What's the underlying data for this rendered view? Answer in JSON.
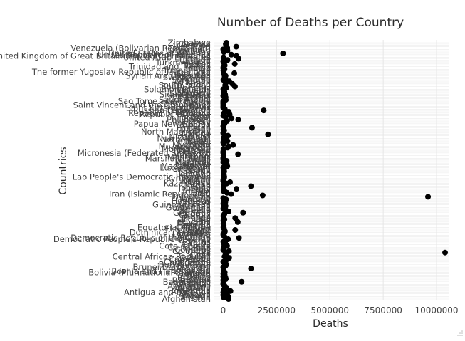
{
  "chart_data": {
    "type": "scatter",
    "title": "Number of Deaths per Country",
    "xlabel": "Deaths",
    "ylabel": "Countries",
    "xlim": [
      -450000,
      10600000
    ],
    "x_ticks": [
      0,
      2500000,
      5000000,
      7500000,
      10000000
    ],
    "x_tick_labels": [
      "0",
      "2500000",
      "5000000",
      "7500000",
      "10000000"
    ],
    "grid": true,
    "legend": "none",
    "point_color": "#000000",
    "countries": [
      "Afghanistan",
      "Albania",
      "Algeria",
      "Andorra",
      "Angola",
      "Antigua and Barbuda",
      "Argentina",
      "Armenia",
      "Australia",
      "Austria",
      "Azerbaijan",
      "Bahamas",
      "Bahrain",
      "Bangladesh",
      "Barbados",
      "Belarus",
      "Belgium",
      "Belize",
      "Benin",
      "Bhutan",
      "Bolivia (Plurinational State of)",
      "Bosnia and Herzegovina",
      "Botswana",
      "Brazil",
      "Brunei Darussalam",
      "Bulgaria",
      "Burkina Faso",
      "Burundi",
      "Cabo Verde",
      "Cambodia",
      "Cameroon",
      "Canada",
      "Central African Republic",
      "Chad",
      "Chile",
      "China",
      "Colombia",
      "Comoros",
      "Congo",
      "Costa Rica",
      "Cote d'Ivoire",
      "Croatia",
      "Cuba",
      "Cyprus",
      "Czechia",
      "Democratic People's Republic of Korea",
      "Democratic Republic of the Congo",
      "Denmark",
      "Djibouti",
      "Dominica",
      "Dominican Republic",
      "Ecuador",
      "Egypt",
      "El Salvador",
      "Equatorial Guinea",
      "Eritrea",
      "Estonia",
      "Eswatini",
      "Ethiopia",
      "Fiji",
      "Finland",
      "France",
      "Gabon",
      "Gambia",
      "Georgia",
      "Germany",
      "Ghana",
      "Greece",
      "Grenada",
      "Guatemala",
      "Guinea",
      "Guinea-Bissau",
      "Guyana",
      "Haiti",
      "Honduras",
      "Hungary",
      "Iceland",
      "India",
      "Indonesia",
      "Iran (Islamic Republic of)",
      "Iraq",
      "Ireland",
      "Israel",
      "Italy",
      "Jamaica",
      "Japan",
      "Jordan",
      "Kazakhstan",
      "Kenya",
      "Kiribati",
      "Kuwait",
      "Kyrgyzstan",
      "Lao People's Democratic Republic",
      "Latvia",
      "Lebanon",
      "Lesotho",
      "Liberia",
      "Libya",
      "Lithuania",
      "Luxembourg",
      "Madagascar",
      "Malawi",
      "Malaysia",
      "Maldives",
      "Mali",
      "Malta",
      "Marshall Islands",
      "Mauritania",
      "Mauritius",
      "Mexico",
      "Micronesia (Federated States of)",
      "Monaco",
      "Mongolia",
      "Montenegro",
      "Morocco",
      "Mozambique",
      "Myanmar",
      "Namibia",
      "Nauru",
      "Nepal",
      "Netherlands",
      "New Zealand",
      "Nicaragua",
      "Niger",
      "Nigeria",
      "Niue",
      "North Macedonia",
      "Norway",
      "Oman",
      "Pakistan",
      "Palau",
      "Panama",
      "Papua New Guinea",
      "Paraguay",
      "Peru",
      "Philippines",
      "Poland",
      "Portugal",
      "Qatar",
      "Republic of Korea",
      "Republic of Moldova",
      "Romania",
      "Russian Federation",
      "Rwanda",
      "Saint Kitts and Nevis",
      "Saint Lucia",
      "Saint Vincent and the Grenadines",
      "Samoa",
      "San Marino",
      "Sao Tome and Principe",
      "Saudi Arabia",
      "Senegal",
      "Serbia",
      "Seychelles",
      "Sierra Leone",
      "Singapore",
      "Slovakia",
      "Slovenia",
      "Solomon Islands",
      "Somalia",
      "South Africa",
      "South Sudan",
      "Spain",
      "Sri Lanka",
      "Sudan",
      "Suriname",
      "Sweden",
      "Switzerland",
      "Syrian Arab Republic",
      "Tajikistan",
      "Thailand",
      "The former Yugoslav Republic of Macedonia",
      "Timor-Leste",
      "Togo",
      "Tonga",
      "Trinidad and Tobago",
      "Tunisia",
      "Turkey",
      "Turkmenistan",
      "Tuvalu",
      "Uganda",
      "Ukraine",
      "United Arab Emirates",
      "United Kingdom of Great Britain and Northern Ireland",
      "United Republic of Tanzania",
      "United States of America",
      "Uruguay",
      "Uzbekistan",
      "Vanuatu",
      "Venezuela (Bolivarian Republic of)",
      "Viet Nam",
      "Yemen",
      "Zambia",
      "Zimbabwe"
    ],
    "deaths": [
      250000,
      30000,
      230000,
      1000,
      180000,
      1000,
      340000,
      25000,
      160000,
      80000,
      60000,
      2000,
      3000,
      860000,
      2000,
      120000,
      110000,
      2000,
      70000,
      5000,
      70000,
      35000,
      15000,
      1300000,
      1000,
      105000,
      150000,
      90000,
      3000,
      100000,
      190000,
      280000,
      60000,
      130000,
      110000,
      10400000,
      270000,
      5000,
      30000,
      25000,
      180000,
      50000,
      95000,
      6000,
      110000,
      230000,
      740000,
      55000,
      8000,
      1000,
      55000,
      80000,
      560000,
      35000,
      10000,
      25000,
      15000,
      12000,
      680000,
      6000,
      55000,
      560000,
      12000,
      12000,
      55000,
      930000,
      250000,
      120000,
      1000,
      85000,
      110000,
      15000,
      5000,
      100000,
      45000,
      130000,
      2000,
      9600000,
      1850000,
      370000,
      180000,
      30000,
      45000,
      620000,
      20000,
      1300000,
      30000,
      160000,
      320000,
      1000,
      8000,
      40000,
      50000,
      30000,
      30000,
      20000,
      45000,
      30000,
      40000,
      4000,
      190000,
      150000,
      160000,
      2000,
      160000,
      4000,
      300,
      20000,
      10000,
      690000,
      1000,
      300,
      20000,
      7000,
      210000,
      250000,
      460000,
      20000,
      100,
      200000,
      150000,
      35000,
      45000,
      220000,
      2100000,
      50,
      22000,
      42000,
      12000,
      1350000,
      150,
      20000,
      60000,
      30000,
      180000,
      700000,
      390000,
      110000,
      6000,
      300000,
      45000,
      260000,
      1900000,
      75000,
      500,
      1500,
      1000,
      1500,
      200,
      2000,
      120000,
      90000,
      110000,
      1000,
      90000,
      30000,
      55000,
      20000,
      5000,
      140000,
      550000,
      90000,
      430000,
      130000,
      280000,
      4000,
      95000,
      65000,
      110000,
      50000,
      520000,
      20000,
      8000,
      60000,
      1000,
      12000,
      70000,
      540000,
      30000,
      100,
      200000,
      720000,
      15000,
      620000,
      380000,
      2800000,
      35000,
      200000,
      2000,
      190000,
      610000,
      150000,
      120000,
      150000
    ]
  }
}
